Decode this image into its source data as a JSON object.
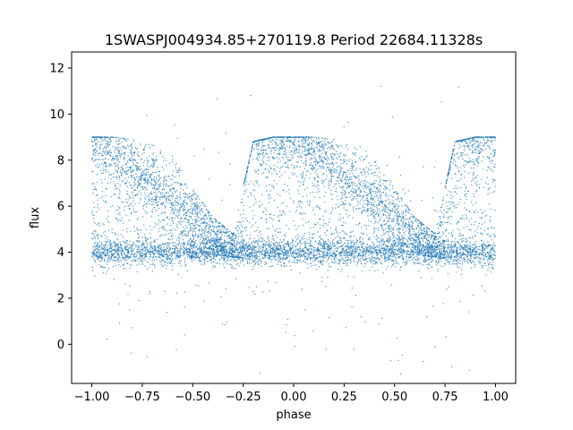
{
  "chart_data": {
    "type": "scatter",
    "title": "1SWASPJ004934.85+270119.8 Period 22684.11328s",
    "xlabel": "phase",
    "ylabel": "flux",
    "xlim": [
      -1.1,
      1.1
    ],
    "ylim": [
      -1.7,
      12.7
    ],
    "x_ticks": [
      -1.0,
      -0.75,
      -0.5,
      -0.25,
      0.0,
      0.25,
      0.5,
      0.75,
      1.0
    ],
    "x_tick_labels": [
      "−1.00",
      "−0.75",
      "−0.50",
      "−0.25",
      "0.00",
      "0.25",
      "0.50",
      "0.75",
      "1.00"
    ],
    "y_ticks": [
      0,
      2,
      4,
      6,
      8,
      10,
      12
    ],
    "y_tick_labels": [
      "0",
      "2",
      "4",
      "6",
      "8",
      "10",
      "12"
    ],
    "grid": false,
    "legend": "none",
    "point_color": "#1f77b4",
    "phase_range": [
      -1.0,
      1.0
    ],
    "baseline_flux": 4.0,
    "max_flux": 9.0,
    "series": [
      {
        "curve": "light-curve-envelope",
        "x": [
          -1.0,
          -0.9,
          -0.8,
          -0.7,
          -0.6,
          -0.5,
          -0.4,
          -0.3,
          -0.2,
          -0.1,
          0.0,
          0.1,
          0.2,
          0.3,
          0.4,
          0.5,
          0.6,
          0.7,
          0.8,
          0.9,
          1.0
        ],
        "upper": [
          9.0,
          9.0,
          8.9,
          8.7,
          8.2,
          6.8,
          5.5,
          4.8,
          8.8,
          9.0,
          9.0,
          9.0,
          8.9,
          8.7,
          8.2,
          6.8,
          5.5,
          4.8,
          8.8,
          9.0,
          9.0
        ],
        "lower": [
          3.7,
          3.7,
          3.8,
          3.9,
          4.0,
          4.0,
          3.9,
          3.8,
          3.7,
          3.7,
          3.7,
          3.7,
          3.8,
          3.9,
          4.0,
          4.0,
          3.9,
          3.8,
          3.7,
          3.7,
          3.7
        ],
        "dense_band": 4.0
      }
    ]
  }
}
